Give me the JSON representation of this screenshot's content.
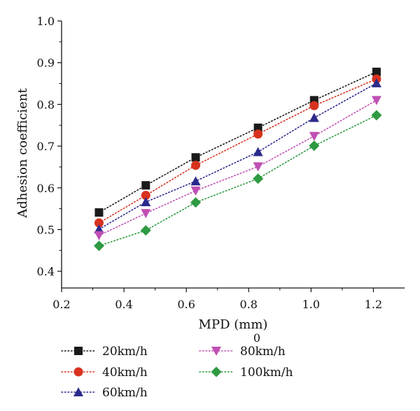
{
  "chart_data": {
    "type": "line",
    "xlabel": "MPD (mm)",
    "ylabel": "Adhesion coefficient",
    "xlim": [
      0.2,
      1.3
    ],
    "ylim": [
      0.36,
      1.0
    ],
    "xticks": [
      0.2,
      0.4,
      0.6,
      0.8,
      1.0,
      1.2
    ],
    "yticks": [
      0.4,
      0.5,
      0.6,
      0.7,
      0.8,
      0.9,
      1.0
    ],
    "xtick_labels": [
      "0.2",
      "0.4",
      "0.6",
      "0.8",
      "1.0",
      "1.2"
    ],
    "ytick_labels": [
      "0.4",
      "0.5",
      "0.6",
      "0.7",
      "0.8",
      "0.9",
      "1.0"
    ],
    "x": [
      0.32,
      0.47,
      0.63,
      0.83,
      1.01,
      1.21
    ],
    "grid": false,
    "legend_position": "bottom",
    "extra_text": "0",
    "series": [
      {
        "name": "20km/h",
        "marker": "square",
        "color": "#1a1a1a",
        "values": [
          0.541,
          0.606,
          0.673,
          0.744,
          0.81,
          0.878
        ]
      },
      {
        "name": "40km/h",
        "marker": "circle",
        "color": "#d8321e",
        "values": [
          0.516,
          0.582,
          0.654,
          0.729,
          0.797,
          0.861
        ]
      },
      {
        "name": "60km/h",
        "marker": "triangle-up",
        "color": "#2b2a8c",
        "values": [
          0.501,
          0.566,
          0.616,
          0.686,
          0.768,
          0.851
        ]
      },
      {
        "name": "80km/h",
        "marker": "triangle-down",
        "color": "#c04fb4",
        "values": [
          0.486,
          0.539,
          0.593,
          0.651,
          0.724,
          0.81
        ]
      },
      {
        "name": "100km/h",
        "marker": "diamond",
        "color": "#2e9a42",
        "values": [
          0.461,
          0.498,
          0.565,
          0.622,
          0.701,
          0.774
        ]
      }
    ]
  }
}
